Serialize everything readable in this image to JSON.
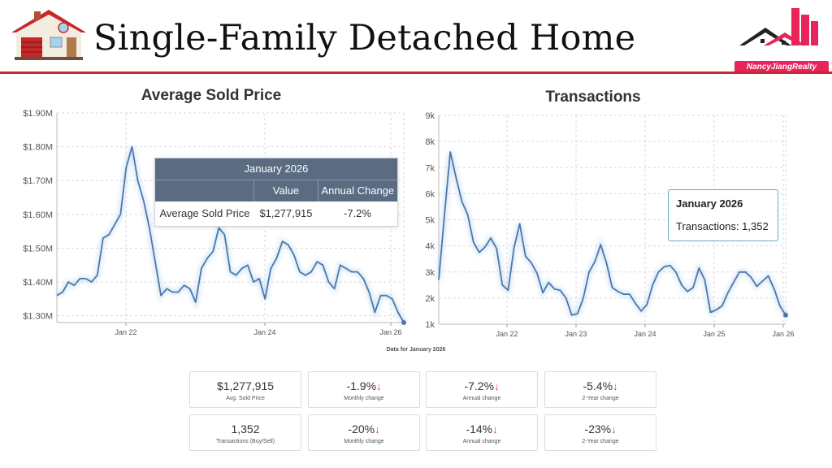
{
  "header": {
    "title": "Single-Family Detached Home",
    "brand": "NancyJiangRealty"
  },
  "colors": {
    "accent_red": "#c8282e",
    "line_blue": "#4a78ad",
    "brand_pink": "#e8245a"
  },
  "chart_data": [
    {
      "type": "line",
      "title": "Average Sold Price",
      "y_ticks": [
        "$1.30M",
        "$1.40M",
        "$1.50M",
        "$1.60M",
        "$1.70M",
        "$1.80M",
        "$1.90M"
      ],
      "x_ticks": [
        "Jan 22",
        "Jan 24",
        "Jan 26"
      ],
      "ylim": [
        1.28,
        1.9
      ],
      "x_range": [
        0,
        61
      ],
      "y": [
        1.36,
        1.37,
        1.4,
        1.39,
        1.41,
        1.41,
        1.4,
        1.42,
        1.53,
        1.54,
        1.57,
        1.6,
        1.74,
        1.8,
        1.7,
        1.64,
        1.56,
        1.46,
        1.36,
        1.38,
        1.37,
        1.37,
        1.39,
        1.38,
        1.34,
        1.44,
        1.47,
        1.49,
        1.56,
        1.54,
        1.43,
        1.42,
        1.44,
        1.45,
        1.4,
        1.41,
        1.35,
        1.44,
        1.47,
        1.52,
        1.51,
        1.48,
        1.43,
        1.42,
        1.43,
        1.46,
        1.45,
        1.4,
        1.38,
        1.45,
        1.44,
        1.43,
        1.43,
        1.41,
        1.37,
        1.31,
        1.36,
        1.36,
        1.35,
        1.31,
        1.28
      ],
      "tooltip": {
        "month": "January 2026",
        "columns": [
          "Value",
          "Annual Change"
        ],
        "row_label": "Average Sold Price",
        "value": "$1,277,915",
        "annual_change": "-7.2%"
      }
    },
    {
      "type": "line",
      "title": "Transactions",
      "y_ticks": [
        "1k",
        "2k",
        "3k",
        "4k",
        "5k",
        "6k",
        "7k",
        "8k",
        "9k"
      ],
      "x_ticks": [
        "Jan 22",
        "Jan 23",
        "Jan 24",
        "Jan 25",
        "Jan 26"
      ],
      "ylim": [
        1000,
        9000
      ],
      "x_range": [
        0,
        50
      ],
      "y": [
        2700,
        5200,
        7600,
        6600,
        5700,
        5200,
        4150,
        3750,
        3950,
        4300,
        3900,
        2500,
        2300,
        3900,
        4850,
        3600,
        3350,
        2950,
        2200,
        2600,
        2350,
        2300,
        2000,
        1350,
        1400,
        2000,
        3000,
        3400,
        4050,
        3350,
        2400,
        2250,
        2150,
        2150,
        1800,
        1500,
        1750,
        2500,
        3000,
        3200,
        3250,
        3000,
        2500,
        2250,
        2400,
        3150,
        2700,
        1450,
        1550,
        1700,
        2200,
        2600,
        3000,
        3000,
        2800,
        2450,
        2650,
        2850,
        2350,
        1700,
        1350
      ],
      "tooltip": {
        "month": "January 2026",
        "label": "Transactions: 1,352"
      }
    }
  ],
  "footer": {
    "note": "Data for January 2026"
  },
  "stats_row1": [
    {
      "value": "$1,277,915",
      "label": "Avg. Sold Price",
      "arrow": ""
    },
    {
      "value": "-1.9%",
      "label": "Monthly change",
      "arrow": "↓"
    },
    {
      "value": "-7.2%",
      "label": "Annual change",
      "arrow": "↓"
    },
    {
      "value": "-5.4%",
      "label": "2-Year change",
      "arrow": "↓"
    }
  ],
  "stats_row2": [
    {
      "value": "1,352",
      "label": "Transactions (Buy/Sell)",
      "arrow": ""
    },
    {
      "value": "-20%",
      "label": "Monthly change",
      "arrow": "↓"
    },
    {
      "value": "-14%",
      "label": "Annual change",
      "arrow": "↓"
    },
    {
      "value": "-23%",
      "label": "2-Year change",
      "arrow": "↓"
    }
  ]
}
